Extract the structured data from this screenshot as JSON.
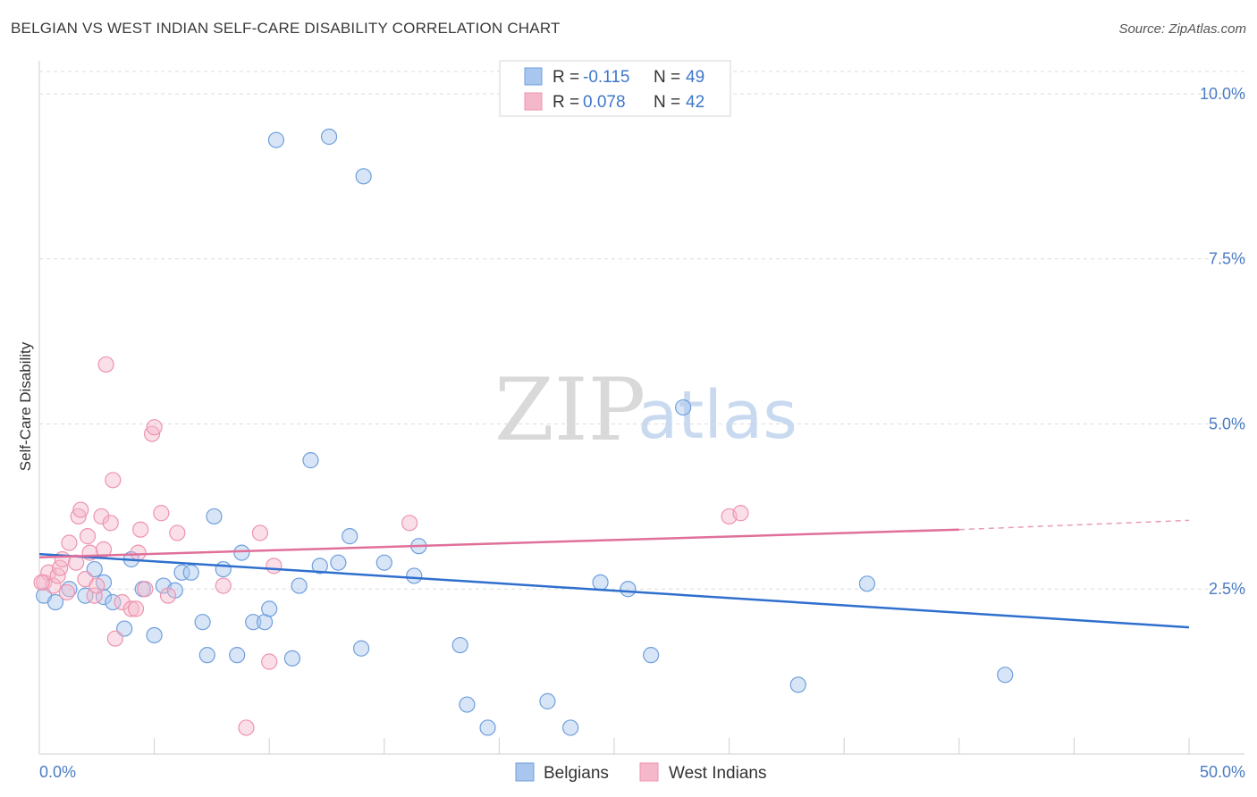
{
  "header": {
    "title": "BELGIAN VS WEST INDIAN SELF-CARE DISABILITY CORRELATION CHART",
    "source": "Source: ZipAtlas.com"
  },
  "watermark": {
    "zip": "ZIP",
    "atlas": "atlas"
  },
  "legend": {
    "rows": [
      {
        "r_label": "R = ",
        "r_value": "-0.115",
        "n_label": "N = ",
        "n_value": "49",
        "color": "#a9c6ee"
      },
      {
        "r_label": "R = ",
        "r_value": "0.078",
        "n_label": "N = ",
        "n_value": "42",
        "color": "#f5b8cb"
      }
    ]
  },
  "bottom_legend": [
    {
      "label": "Belgians",
      "color": "#a9c6ee"
    },
    {
      "label": "West Indians",
      "color": "#f5b8cb"
    }
  ],
  "chart_data": {
    "type": "scatter",
    "xlabel": "",
    "ylabel": "Self-Care Disability",
    "xlim": [
      0,
      50
    ],
    "ylim": [
      0,
      10.5
    ],
    "x_tick_labels": [
      {
        "value": 0,
        "label": "0.0%"
      },
      {
        "value": 50,
        "label": "50.0%"
      }
    ],
    "y_tick_labels": [
      {
        "value": 2.5,
        "label": "2.5%"
      },
      {
        "value": 5.0,
        "label": "5.0%"
      },
      {
        "value": 7.5,
        "label": "7.5%"
      },
      {
        "value": 10.0,
        "label": "10.0%"
      }
    ],
    "grid": true,
    "series": [
      {
        "name": "Belgians",
        "color": "#6f9fdc",
        "fill": "#a9c6ee",
        "trend": {
          "x0": 0,
          "y0": 3.03,
          "x1": 50,
          "y1": 1.92,
          "color": "#2f6fce"
        },
        "points": [
          [
            0.2,
            2.4
          ],
          [
            0.7,
            2.3
          ],
          [
            1.3,
            2.5
          ],
          [
            2.0,
            2.4
          ],
          [
            2.8,
            2.38
          ],
          [
            2.4,
            2.8
          ],
          [
            2.8,
            2.6
          ],
          [
            3.2,
            2.3
          ],
          [
            3.7,
            1.9
          ],
          [
            4.0,
            2.95
          ],
          [
            4.5,
            2.5
          ],
          [
            5.0,
            1.8
          ],
          [
            5.4,
            2.55
          ],
          [
            5.9,
            2.48
          ],
          [
            6.2,
            2.75
          ],
          [
            6.6,
            2.75
          ],
          [
            7.1,
            2.0
          ],
          [
            7.3,
            1.5
          ],
          [
            7.6,
            3.6
          ],
          [
            8.0,
            2.8
          ],
          [
            8.6,
            1.5
          ],
          [
            8.8,
            3.05
          ],
          [
            9.3,
            2.0
          ],
          [
            9.8,
            2.0
          ],
          [
            10.0,
            2.2
          ],
          [
            10.3,
            9.3
          ],
          [
            11.0,
            1.45
          ],
          [
            11.3,
            2.55
          ],
          [
            11.8,
            4.45
          ],
          [
            12.2,
            2.85
          ],
          [
            12.6,
            9.35
          ],
          [
            13.0,
            2.9
          ],
          [
            13.5,
            3.3
          ],
          [
            14.0,
            1.6
          ],
          [
            14.1,
            8.75
          ],
          [
            15.0,
            2.9
          ],
          [
            16.3,
            2.7
          ],
          [
            16.5,
            3.15
          ],
          [
            18.3,
            1.65
          ],
          [
            18.6,
            0.75
          ],
          [
            19.5,
            0.4
          ],
          [
            22.1,
            0.8
          ],
          [
            23.1,
            0.4
          ],
          [
            24.4,
            2.6
          ],
          [
            25.6,
            2.5
          ],
          [
            26.6,
            1.5
          ],
          [
            28.0,
            5.25
          ],
          [
            33.0,
            1.05
          ],
          [
            36.0,
            2.58
          ],
          [
            42.0,
            1.2
          ]
        ]
      },
      {
        "name": "West Indians",
        "color": "#ee93ad",
        "fill": "#f5b8cb",
        "trend": {
          "x0": 0,
          "y0": 2.98,
          "x1": 40,
          "y1": 3.4,
          "color": "#e0709a"
        },
        "trend_dashed": {
          "x0": 40,
          "y0": 3.4,
          "x1": 50,
          "y1": 3.54
        },
        "points": [
          [
            0.2,
            2.6
          ],
          [
            0.4,
            2.75
          ],
          [
            0.6,
            2.55
          ],
          [
            0.8,
            2.7
          ],
          [
            0.9,
            2.82
          ],
          [
            1.0,
            2.95
          ],
          [
            1.2,
            2.45
          ],
          [
            1.3,
            3.2
          ],
          [
            1.6,
            2.9
          ],
          [
            1.7,
            3.6
          ],
          [
            1.8,
            3.7
          ],
          [
            2.0,
            2.65
          ],
          [
            2.1,
            3.3
          ],
          [
            2.2,
            3.05
          ],
          [
            2.4,
            2.4
          ],
          [
            2.5,
            2.55
          ],
          [
            2.7,
            3.6
          ],
          [
            2.8,
            3.1
          ],
          [
            2.9,
            5.9
          ],
          [
            3.1,
            3.5
          ],
          [
            3.2,
            4.15
          ],
          [
            3.3,
            1.75
          ],
          [
            3.6,
            2.3
          ],
          [
            4.0,
            2.2
          ],
          [
            4.2,
            2.2
          ],
          [
            4.3,
            3.05
          ],
          [
            4.4,
            3.4
          ],
          [
            4.6,
            2.5
          ],
          [
            4.9,
            4.85
          ],
          [
            5.0,
            4.95
          ],
          [
            5.3,
            3.65
          ],
          [
            5.6,
            2.4
          ],
          [
            6.0,
            3.35
          ],
          [
            8.0,
            2.55
          ],
          [
            9.0,
            0.4
          ],
          [
            9.6,
            3.35
          ],
          [
            10.0,
            1.4
          ],
          [
            10.2,
            2.85
          ],
          [
            16.1,
            3.5
          ],
          [
            30.0,
            3.6
          ],
          [
            30.5,
            3.65
          ],
          [
            0.1,
            2.6
          ]
        ]
      }
    ]
  }
}
